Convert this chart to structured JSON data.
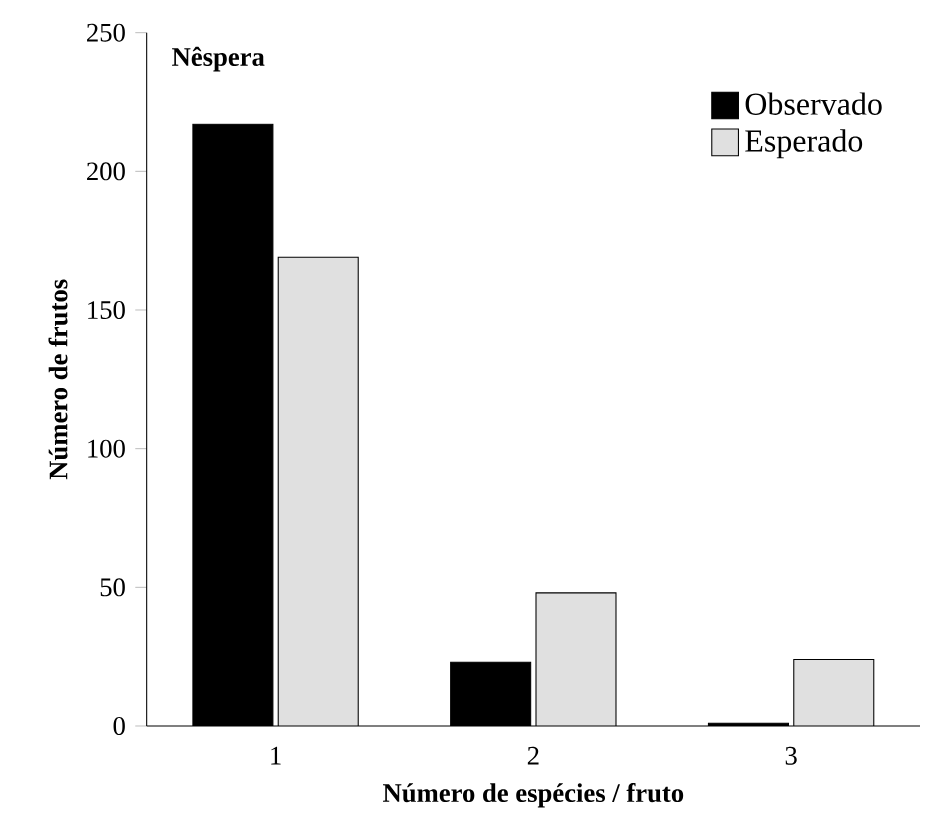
{
  "chart_data": {
    "type": "bar",
    "title": "Nêspera",
    "xlabel": "Número de espécies / fruto",
    "ylabel": "Número de frutos",
    "categories": [
      "1",
      "2",
      "3"
    ],
    "series": [
      {
        "name": "Observado",
        "color": "#000000",
        "values": [
          217,
          23,
          1
        ]
      },
      {
        "name": "Esperado",
        "color": "#e0e0e0",
        "values": [
          169,
          48,
          24
        ]
      }
    ],
    "ylim": [
      0,
      250
    ],
    "yticks": [
      0,
      50,
      100,
      150,
      200,
      250
    ],
    "legend": "top right",
    "grid": false
  }
}
